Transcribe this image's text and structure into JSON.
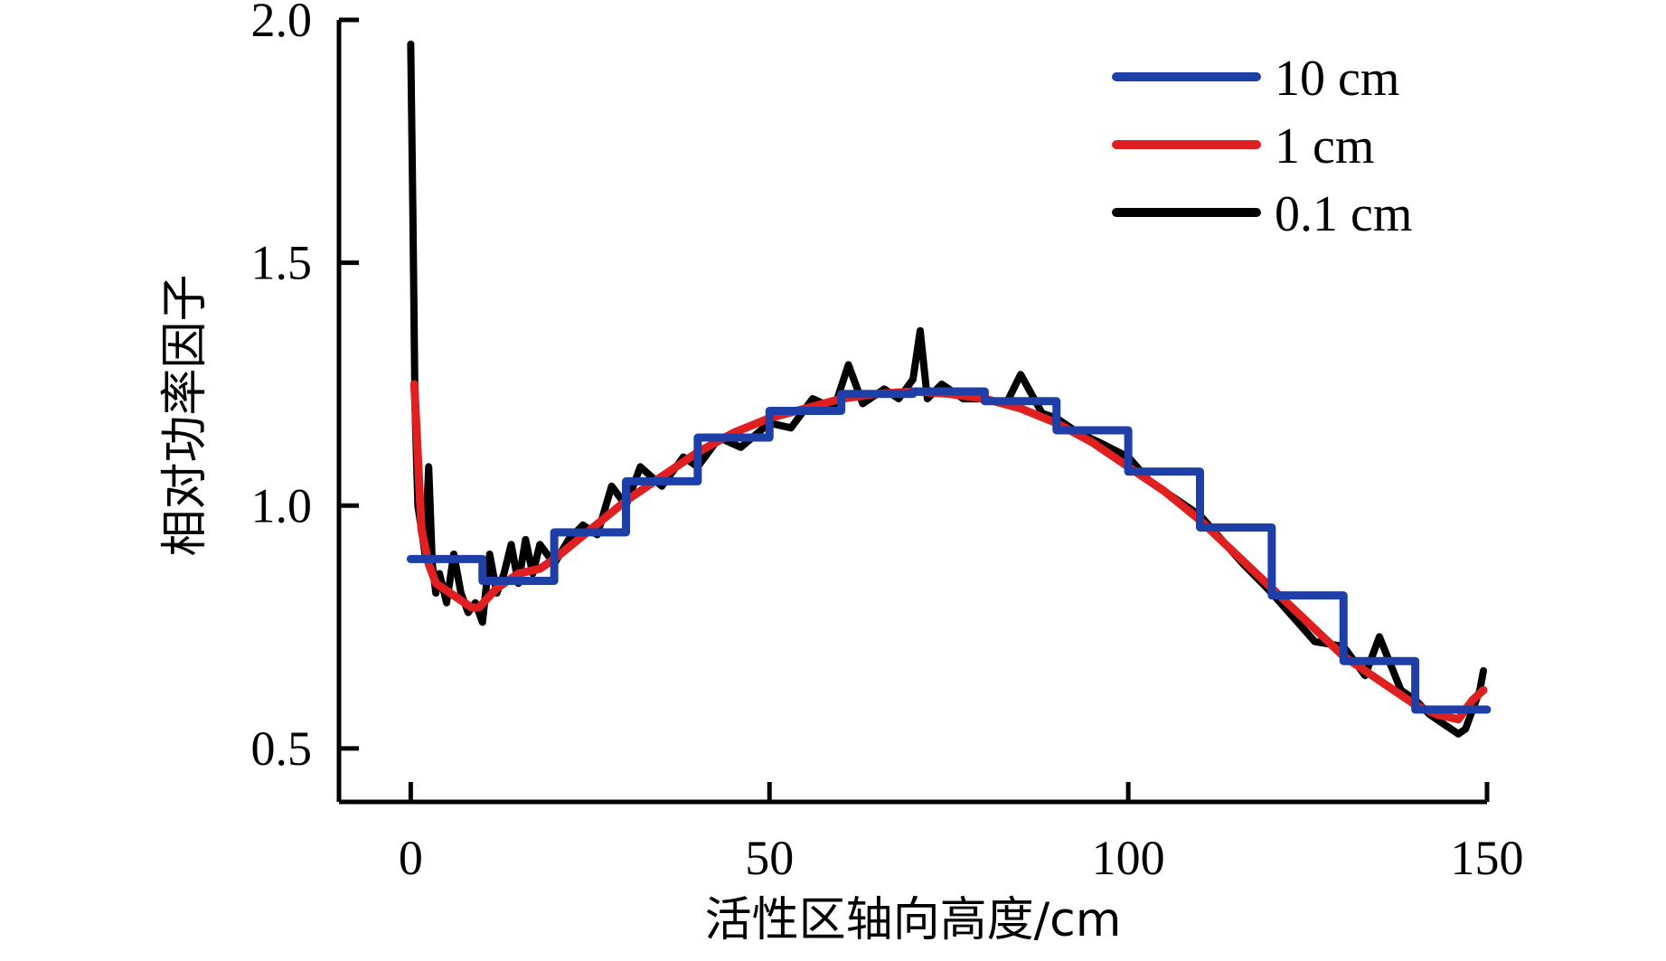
{
  "chart_data": {
    "type": "line",
    "title": "",
    "xlabel": "活性区轴向高度/cm",
    "ylabel": "相对功率因子",
    "xlim": [
      -10,
      150
    ],
    "ylim": [
      0.39,
      2.0
    ],
    "xticks": [
      0,
      50,
      100,
      150
    ],
    "yticks": [
      0.5,
      1.0,
      1.5,
      2.0
    ],
    "xtick_labels": [
      "0",
      "50",
      "100",
      "150"
    ],
    "ytick_labels": [
      "0.5",
      "1.0",
      "1.5",
      "2.0"
    ],
    "grid": false,
    "legend_position": "top-right",
    "series": [
      {
        "name": "10 cm",
        "color": "#1f3fa8",
        "style": "step",
        "x": [
          0,
          10,
          20,
          30,
          40,
          50,
          60,
          70,
          80,
          90,
          100,
          110,
          120,
          130,
          140,
          150
        ],
        "values": [
          0.89,
          0.845,
          0.945,
          1.05,
          1.14,
          1.195,
          1.23,
          1.235,
          1.215,
          1.155,
          1.07,
          0.955,
          0.815,
          0.68,
          0.58,
          0.58
        ]
      },
      {
        "name": "1 cm",
        "color": "#e02020",
        "style": "line",
        "x": [
          0.5,
          1.5,
          2.5,
          3.5,
          4.5,
          5.5,
          6.5,
          7.5,
          8.5,
          9.5,
          12,
          15,
          18,
          20,
          25,
          30,
          35,
          40,
          45,
          50,
          55,
          60,
          65,
          70,
          75,
          80,
          85,
          90,
          95,
          100,
          105,
          110,
          115,
          120,
          125,
          130,
          135,
          140,
          143,
          146,
          148,
          149.5
        ],
        "values": [
          1.25,
          0.95,
          0.88,
          0.84,
          0.83,
          0.82,
          0.81,
          0.8,
          0.79,
          0.79,
          0.83,
          0.86,
          0.87,
          0.89,
          0.95,
          1.01,
          1.06,
          1.11,
          1.15,
          1.18,
          1.2,
          1.22,
          1.23,
          1.235,
          1.23,
          1.22,
          1.2,
          1.17,
          1.13,
          1.08,
          1.03,
          0.97,
          0.9,
          0.83,
          0.76,
          0.69,
          0.64,
          0.59,
          0.57,
          0.56,
          0.6,
          0.62
        ]
      },
      {
        "name": "0.1 cm",
        "color": "#000000",
        "style": "line",
        "x": [
          0,
          0.3,
          0.6,
          1,
          1.5,
          2,
          2.5,
          3,
          3.5,
          4,
          5,
          6,
          7,
          8,
          9,
          10,
          11,
          12,
          13,
          14,
          15,
          16,
          17,
          18,
          20,
          22,
          24,
          26,
          28,
          30,
          32,
          35,
          38,
          40,
          43,
          46,
          50,
          53,
          56,
          59,
          61,
          63,
          66,
          68,
          70,
          71,
          72,
          74,
          77,
          80,
          83,
          85,
          88,
          90,
          93,
          96,
          100,
          103,
          106,
          110,
          113,
          116,
          120,
          123,
          126,
          130,
          133,
          135,
          138,
          140,
          142,
          144,
          146,
          147,
          148,
          149,
          149.5
        ],
        "values": [
          1.95,
          1.6,
          1.2,
          1.0,
          0.95,
          0.9,
          1.08,
          0.88,
          0.82,
          0.86,
          0.8,
          0.9,
          0.82,
          0.78,
          0.8,
          0.76,
          0.9,
          0.82,
          0.86,
          0.92,
          0.84,
          0.93,
          0.86,
          0.92,
          0.88,
          0.93,
          0.96,
          0.94,
          1.04,
          1.0,
          1.08,
          1.04,
          1.1,
          1.08,
          1.14,
          1.12,
          1.17,
          1.16,
          1.22,
          1.2,
          1.29,
          1.21,
          1.24,
          1.22,
          1.26,
          1.36,
          1.22,
          1.25,
          1.22,
          1.22,
          1.21,
          1.27,
          1.19,
          1.18,
          1.15,
          1.13,
          1.1,
          1.05,
          1.02,
          0.98,
          0.93,
          0.88,
          0.82,
          0.77,
          0.72,
          0.71,
          0.65,
          0.73,
          0.62,
          0.6,
          0.57,
          0.55,
          0.53,
          0.54,
          0.58,
          0.62,
          0.66
        ]
      }
    ]
  }
}
